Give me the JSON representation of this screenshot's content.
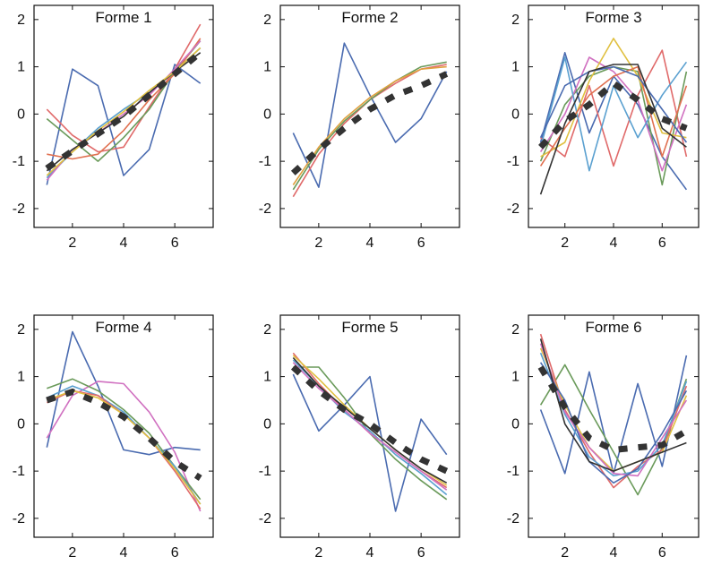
{
  "chart_data": [
    {
      "type": "line",
      "title": "Forme 1",
      "xlim": [
        0.5,
        7.5
      ],
      "ylim": [
        -2.4,
        2.3
      ],
      "xticks": [
        2,
        4,
        6
      ],
      "yticks": [
        2,
        1,
        0,
        -1,
        -2
      ],
      "grid": false,
      "x": [
        1,
        2,
        3,
        4,
        5,
        6,
        7
      ],
      "series": [
        {
          "color": "#4a6bb0",
          "values": [
            -1.5,
            0.95,
            0.6,
            -1.3,
            -0.75,
            1.05,
            0.65
          ]
        },
        {
          "color": "#e06a6a",
          "values": [
            0.1,
            -0.45,
            -0.8,
            -0.7,
            0.15,
            0.95,
            1.9
          ]
        },
        {
          "color": "#6a9a5a",
          "values": [
            -0.1,
            -0.55,
            -1.0,
            -0.5,
            0.1,
            0.9,
            1.55
          ]
        },
        {
          "color": "#e07050",
          "values": [
            -0.85,
            -0.95,
            -0.85,
            -0.35,
            0.3,
            0.85,
            1.6
          ]
        },
        {
          "color": "#5aa0d0",
          "values": [
            -1.35,
            -0.8,
            -0.3,
            0.1,
            0.45,
            0.9,
            1.4
          ]
        },
        {
          "color": "#d070c0",
          "values": [
            -1.4,
            -0.75,
            -0.4,
            0.0,
            0.4,
            0.95,
            1.55
          ]
        },
        {
          "color": "#333333",
          "values": [
            -1.2,
            -0.75,
            -0.4,
            -0.05,
            0.45,
            0.9,
            1.3
          ]
        },
        {
          "color": "#e0c040",
          "values": [
            -1.3,
            -0.8,
            -0.35,
            0.05,
            0.5,
            0.9,
            1.4
          ]
        }
      ],
      "mean": {
        "color": "#333333",
        "values": [
          -1.15,
          -0.78,
          -0.42,
          -0.05,
          0.4,
          0.85,
          1.3
        ]
      }
    },
    {
      "type": "line",
      "title": "Forme 2",
      "xlim": [
        0.5,
        7.5
      ],
      "ylim": [
        -2.4,
        2.3
      ],
      "xticks": [
        2,
        4,
        6
      ],
      "yticks": [
        2,
        1,
        0,
        -1,
        -2
      ],
      "grid": false,
      "x": [
        1,
        2,
        3,
        4,
        5,
        6,
        7
      ],
      "series": [
        {
          "color": "#4a6bb0",
          "values": [
            -0.4,
            -1.55,
            1.5,
            0.4,
            -0.6,
            -0.1,
            0.9
          ]
        },
        {
          "color": "#e06a6a",
          "values": [
            -1.75,
            -0.85,
            -0.2,
            0.3,
            0.65,
            0.95,
            1.05
          ]
        },
        {
          "color": "#6a9a5a",
          "values": [
            -1.6,
            -0.75,
            -0.15,
            0.3,
            0.7,
            1.0,
            1.1
          ]
        },
        {
          "color": "#e0a040",
          "values": [
            -1.5,
            -0.7,
            -0.1,
            0.35,
            0.7,
            0.95,
            1.0
          ]
        }
      ],
      "mean": {
        "color": "#333333",
        "values": [
          -1.25,
          -0.75,
          -0.3,
          0.1,
          0.4,
          0.6,
          0.85
        ]
      }
    },
    {
      "type": "line",
      "title": "Forme 3",
      "xlim": [
        0.5,
        7.5
      ],
      "ylim": [
        -2.4,
        2.3
      ],
      "xticks": [
        2,
        4,
        6
      ],
      "yticks": [
        2,
        1,
        0,
        -1,
        -2
      ],
      "grid": false,
      "x": [
        1,
        2,
        3,
        4,
        5,
        6,
        7
      ],
      "series": [
        {
          "color": "#4a6bb0",
          "values": [
            -0.6,
            1.3,
            -0.4,
            0.8,
            0.2,
            -0.9,
            -1.6
          ]
        },
        {
          "color": "#e06a6a",
          "values": [
            -0.5,
            -0.9,
            0.6,
            -1.1,
            0.4,
            1.35,
            -0.9
          ]
        },
        {
          "color": "#6a9a5a",
          "values": [
            -1.0,
            0.2,
            0.8,
            1.0,
            0.9,
            -1.5,
            0.9
          ]
        },
        {
          "color": "#d070c0",
          "values": [
            -0.8,
            0.0,
            1.2,
            0.9,
            0.3,
            -1.2,
            0.2
          ]
        },
        {
          "color": "#5aa0d0",
          "values": [
            -0.7,
            1.2,
            -1.2,
            0.6,
            -0.5,
            0.4,
            1.1
          ]
        },
        {
          "color": "#e0c040",
          "values": [
            -0.9,
            -0.6,
            0.7,
            1.6,
            0.8,
            -0.4,
            -0.5
          ]
        },
        {
          "color": "#e07050",
          "values": [
            -1.1,
            -0.3,
            0.4,
            0.8,
            1.0,
            -0.9,
            0.6
          ]
        },
        {
          "color": "#4a6bb0",
          "values": [
            -0.5,
            0.6,
            0.9,
            1.0,
            0.8,
            0.1,
            -0.6
          ]
        },
        {
          "color": "#333333",
          "values": [
            -1.7,
            -0.2,
            0.9,
            1.05,
            1.05,
            -0.3,
            -0.7
          ]
        }
      ],
      "mean": {
        "color": "#333333",
        "values": [
          -0.7,
          -0.15,
          0.2,
          0.65,
          0.3,
          -0.1,
          -0.3
        ]
      }
    },
    {
      "type": "line",
      "title": "Forme 4",
      "xlim": [
        0.5,
        7.5
      ],
      "ylim": [
        -2.4,
        2.3
      ],
      "xticks": [
        2,
        4,
        6
      ],
      "yticks": [
        2,
        1,
        0,
        -1,
        -2
      ],
      "grid": false,
      "x": [
        1,
        2,
        3,
        4,
        5,
        6,
        7
      ],
      "series": [
        {
          "color": "#4a6bb0",
          "values": [
            -0.5,
            1.95,
            0.8,
            -0.55,
            -0.65,
            -0.5,
            -0.55
          ]
        },
        {
          "color": "#d070c0",
          "values": [
            -0.3,
            0.6,
            0.9,
            0.85,
            0.25,
            -0.6,
            -1.85
          ]
        },
        {
          "color": "#6a9a5a",
          "values": [
            0.75,
            0.95,
            0.7,
            0.3,
            -0.2,
            -0.9,
            -1.6
          ]
        },
        {
          "color": "#5aa0d0",
          "values": [
            0.55,
            0.8,
            0.6,
            0.25,
            -0.3,
            -0.9,
            -1.7
          ]
        },
        {
          "color": "#e06a6a",
          "values": [
            0.45,
            0.7,
            0.6,
            0.2,
            -0.3,
            -1.0,
            -1.8
          ]
        },
        {
          "color": "#e0c040",
          "values": [
            0.5,
            0.7,
            0.55,
            0.2,
            -0.3,
            -0.95,
            -1.7
          ]
        }
      ],
      "mean": {
        "color": "#333333",
        "values": [
          0.5,
          0.68,
          0.45,
          0.15,
          -0.3,
          -0.8,
          -1.15
        ]
      }
    },
    {
      "type": "line",
      "title": "Forme 5",
      "xlim": [
        0.5,
        7.5
      ],
      "ylim": [
        -2.4,
        2.3
      ],
      "xticks": [
        2,
        4,
        6
      ],
      "yticks": [
        2,
        1,
        0,
        -1,
        -2
      ],
      "grid": false,
      "x": [
        1,
        2,
        3,
        4,
        5,
        6,
        7
      ],
      "series": [
        {
          "color": "#4a6bb0",
          "values": [
            1.05,
            -0.15,
            0.4,
            1.0,
            -1.85,
            0.1,
            -0.65
          ]
        },
        {
          "color": "#6a9a5a",
          "values": [
            1.2,
            1.2,
            0.55,
            -0.2,
            -0.75,
            -1.2,
            -1.6
          ]
        },
        {
          "color": "#e06a6a",
          "values": [
            1.5,
            0.85,
            0.3,
            -0.2,
            -0.6,
            -1.0,
            -1.35
          ]
        },
        {
          "color": "#e0c040",
          "values": [
            1.45,
            0.95,
            0.4,
            -0.1,
            -0.55,
            -0.95,
            -1.3
          ]
        },
        {
          "color": "#5aa0d0",
          "values": [
            1.35,
            0.8,
            0.25,
            -0.15,
            -0.65,
            -1.05,
            -1.5
          ]
        },
        {
          "color": "#d070c0",
          "values": [
            1.3,
            0.75,
            0.3,
            -0.2,
            -0.6,
            -1.0,
            -1.4
          ]
        },
        {
          "color": "#333333",
          "values": [
            1.4,
            0.8,
            0.35,
            -0.1,
            -0.55,
            -0.95,
            -1.25
          ]
        }
      ],
      "mean": {
        "color": "#333333",
        "values": [
          1.2,
          0.7,
          0.3,
          0.0,
          -0.4,
          -0.75,
          -1.0
        ]
      }
    },
    {
      "type": "line",
      "title": "Forme 6",
      "xlim": [
        0.5,
        7.5
      ],
      "ylim": [
        -2.4,
        2.3
      ],
      "xticks": [
        2,
        4,
        6
      ],
      "yticks": [
        2,
        1,
        0,
        -1,
        -2
      ],
      "grid": false,
      "x": [
        1,
        2,
        3,
        4,
        5,
        6,
        7
      ],
      "series": [
        {
          "color": "#4a6bb0",
          "values": [
            0.3,
            -1.05,
            1.1,
            -1.05,
            0.85,
            -0.9,
            1.45
          ]
        },
        {
          "color": "#6a9a5a",
          "values": [
            0.4,
            1.25,
            0.3,
            -0.6,
            -1.5,
            -0.5,
            0.95
          ]
        },
        {
          "color": "#e06a6a",
          "values": [
            1.9,
            0.3,
            -0.6,
            -1.35,
            -0.9,
            -0.55,
            0.8
          ]
        },
        {
          "color": "#e0c040",
          "values": [
            1.6,
            0.4,
            -0.5,
            -1.0,
            -0.8,
            -0.6,
            0.6
          ]
        },
        {
          "color": "#5aa0d0",
          "values": [
            1.5,
            0.2,
            -0.7,
            -1.1,
            -1.0,
            -0.45,
            0.9
          ]
        },
        {
          "color": "#d070c0",
          "values": [
            1.7,
            0.25,
            -0.5,
            -1.05,
            -1.1,
            -0.3,
            0.5
          ]
        },
        {
          "color": "#4a6bb0",
          "values": [
            1.3,
            0.5,
            -0.8,
            -1.25,
            -0.95,
            -0.2,
            0.7
          ]
        },
        {
          "color": "#333333",
          "values": [
            1.8,
            0.0,
            -0.8,
            -1.0,
            -0.8,
            -0.6,
            -0.4
          ]
        }
      ],
      "mean": {
        "color": "#333333",
        "values": [
          1.2,
          0.35,
          -0.3,
          -0.55,
          -0.5,
          -0.45,
          -0.15
        ]
      }
    }
  ]
}
